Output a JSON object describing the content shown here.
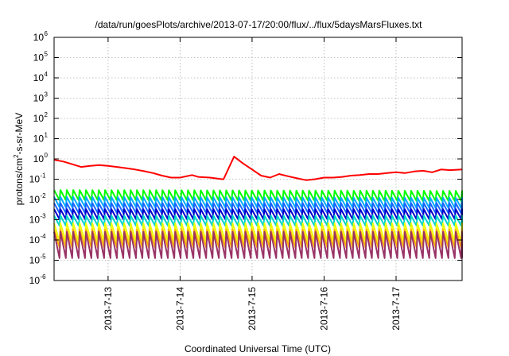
{
  "chart_data": {
    "type": "line",
    "title": "/data/run/goesPlots/archive/2013-07-17/20:00/flux/../flux/5daysMarsFluxes.txt",
    "xlabel": "Coordinated Universal Time (UTC)",
    "ylabel": "protons/cm²-s-sr-MeV",
    "y_scale": "log",
    "ylim": [
      1e-06,
      1000000.0
    ],
    "xlim": [
      "2013-07-12 06:00",
      "2013-07-17 22:00"
    ],
    "x_ticks": [
      "2013-7-13",
      "2013-7-14",
      "2013-7-15",
      "2013-7-16",
      "2013-7-17"
    ],
    "y_ticks": [
      {
        "base": "10",
        "exp": "-6"
      },
      {
        "base": "10",
        "exp": "-5"
      },
      {
        "base": "10",
        "exp": "-4"
      },
      {
        "base": "10",
        "exp": "-3"
      },
      {
        "base": "10",
        "exp": "-2"
      },
      {
        "base": "10",
        "exp": "-1"
      },
      {
        "base": "10",
        "exp": "0"
      },
      {
        "base": "10",
        "exp": "1"
      },
      {
        "base": "10",
        "exp": "2"
      },
      {
        "base": "10",
        "exp": "3"
      },
      {
        "base": "10",
        "exp": "4"
      },
      {
        "base": "10",
        "exp": "5"
      },
      {
        "base": "10",
        "exp": "6"
      }
    ],
    "grid": true,
    "legend": "none",
    "series": [
      {
        "color": "#ff0000",
        "x": [
          "2013-07-12 06:00",
          "2013-07-12 09:00",
          "2013-07-12 12:00",
          "2013-07-12 15:00",
          "2013-07-12 18:00",
          "2013-07-12 21:00",
          "2013-07-13 00:00",
          "2013-07-13 03:00",
          "2013-07-13 06:00",
          "2013-07-13 09:00",
          "2013-07-13 12:00",
          "2013-07-13 15:00",
          "2013-07-13 18:00",
          "2013-07-13 21:00",
          "2013-07-14 00:00",
          "2013-07-14 04:00",
          "2013-07-14 06:00",
          "2013-07-14 10:00",
          "2013-07-14 14:00",
          "2013-07-14 14:30",
          "2013-07-14 18:00",
          "2013-07-14 21:00",
          "2013-07-15 00:00",
          "2013-07-15 03:00",
          "2013-07-15 06:00",
          "2013-07-15 09:00",
          "2013-07-15 12:00",
          "2013-07-15 15:00",
          "2013-07-15 18:00",
          "2013-07-15 21:00",
          "2013-07-16 00:00",
          "2013-07-16 03:00",
          "2013-07-16 06:00",
          "2013-07-16 09:00",
          "2013-07-16 12:00",
          "2013-07-16 15:00",
          "2013-07-16 18:00",
          "2013-07-16 21:00",
          "2013-07-17 00:00",
          "2013-07-17 03:00",
          "2013-07-17 06:00",
          "2013-07-17 09:00",
          "2013-07-17 12:00",
          "2013-07-17 15:00",
          "2013-07-17 18:00",
          "2013-07-17 22:00"
        ],
        "values": [
          0.9,
          0.75,
          0.55,
          0.4,
          0.45,
          0.5,
          0.45,
          0.4,
          0.35,
          0.3,
          0.25,
          0.2,
          0.15,
          0.12,
          0.12,
          0.16,
          0.13,
          0.12,
          0.1,
          0.1,
          1.3,
          0.6,
          0.3,
          0.15,
          0.12,
          0.18,
          0.14,
          0.11,
          0.09,
          0.1,
          0.12,
          0.12,
          0.13,
          0.15,
          0.16,
          0.18,
          0.18,
          0.2,
          0.22,
          0.2,
          0.24,
          0.26,
          0.22,
          0.3,
          0.28,
          0.3
        ]
      },
      {
        "color": "#00ff00",
        "x": [
          "2013-07-12 06:00",
          "2013-07-17 22:00"
        ],
        "values": [
          0.022,
          0.02
        ]
      },
      {
        "color": "#00aaff",
        "x": [
          "2013-07-12 06:00",
          "2013-07-17 22:00"
        ],
        "values": [
          0.01,
          0.009
        ]
      },
      {
        "color": "#1a66ff",
        "x": [
          "2013-07-12 06:00",
          "2013-07-17 22:00"
        ],
        "values": [
          0.005,
          0.005
        ]
      },
      {
        "color": "#0000cc",
        "x": [
          "2013-07-12 06:00",
          "2013-07-17 22:00"
        ],
        "values": [
          0.0025,
          0.0025
        ]
      },
      {
        "color": "#00d4c8",
        "x": [
          "2013-07-12 06:00",
          "2013-07-17 22:00"
        ],
        "values": [
          0.0012,
          0.0012
        ]
      },
      {
        "color": "#eeff00",
        "x": [
          "2013-07-12 06:00",
          "2013-07-17 22:00"
        ],
        "values": [
          0.0004,
          0.0004
        ]
      },
      {
        "color": "#ffb000",
        "x": [
          "2013-07-12 06:00",
          "2013-07-17 22:00"
        ],
        "values": [
          0.0002,
          0.0002
        ]
      },
      {
        "color": "#993366",
        "x": [
          "2013-07-12 06:00",
          "2013-07-17 22:00"
        ],
        "values": [
          0.00012,
          0.00012
        ]
      }
    ]
  }
}
